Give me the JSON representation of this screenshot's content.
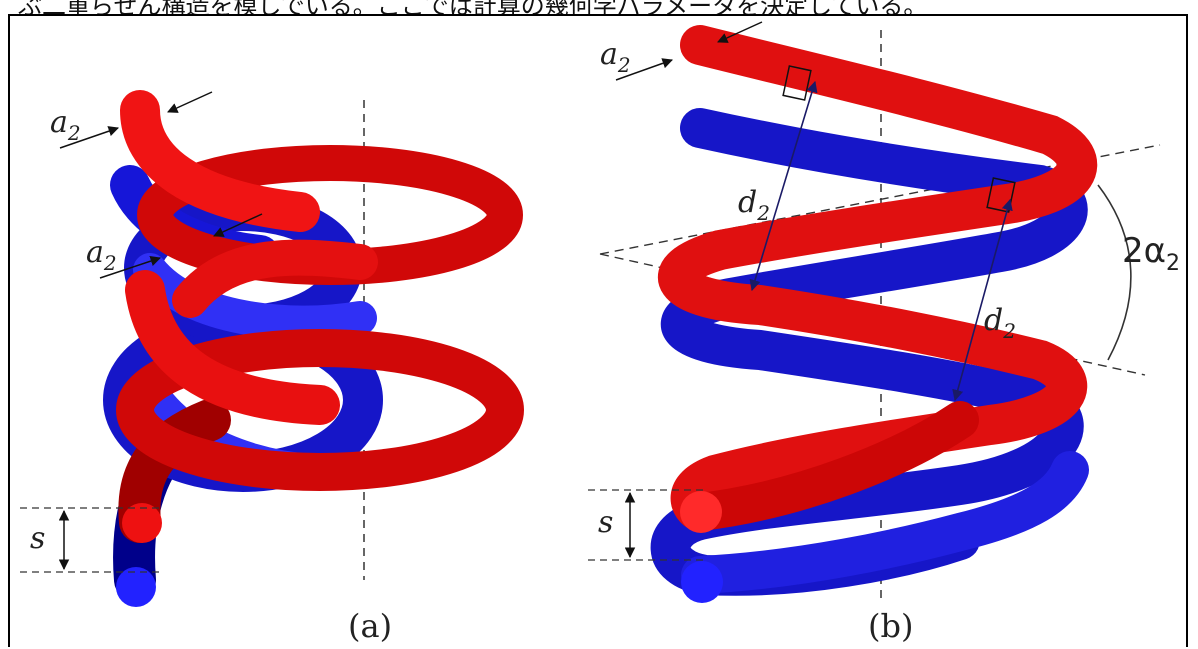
{
  "header": {
    "clipped_text": "ぶ二重らせん構造を模しでいる。ここでは計算の幾何学パラメータを決定している。"
  },
  "colors": {
    "strand_a": "#e01010",
    "strand_b": "#1a1ae0",
    "guides": "#333333"
  },
  "panel_a": {
    "caption": "(a)",
    "labels": {
      "a2_top": "a",
      "a2_top_sub": "2",
      "a2_mid": "a",
      "a2_mid_sub": "2",
      "s": "s"
    }
  },
  "panel_b": {
    "caption": "(b)",
    "labels": {
      "a2": "a",
      "a2_sub": "2",
      "d2_left": "d",
      "d2_left_sub": "2",
      "d2_right": "d",
      "d2_right_sub": "2",
      "s": "s",
      "angle": "2α",
      "angle_sub": "2"
    }
  }
}
